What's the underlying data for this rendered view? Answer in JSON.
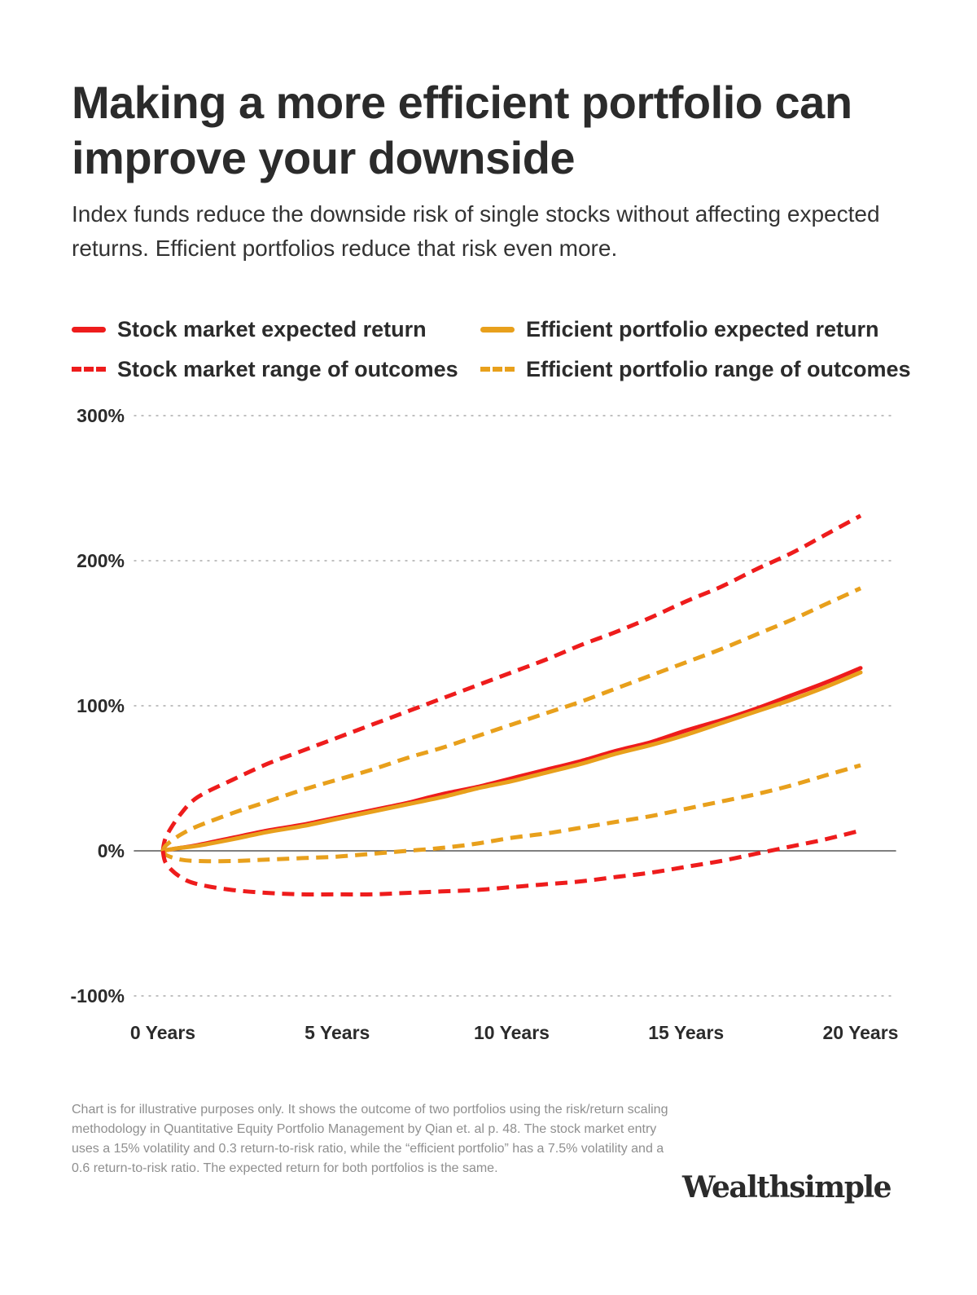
{
  "title": "Making a more efficient portfolio can improve your downside",
  "subtitle": "Index funds reduce the downside risk of single stocks without affecting expected returns. Efficient portfolios reduce that risk even more.",
  "legend": {
    "stock_expected": "Stock market expected return",
    "efficient_expected": "Efficient portfolio expected return",
    "stock_range": "Stock market range of outcomes",
    "efficient_range": "Efficient portfolio range of outcomes"
  },
  "colors": {
    "stock": "#ee1c1c",
    "efficient": "#e8a01c",
    "grid": "#9a9a9a",
    "axis": "#555555",
    "text": "#2b2b2b"
  },
  "footnote": "Chart is for illustrative purposes only. It shows the outcome of two portfolios using the risk/return scaling methodology in Quantitative Equity Portfolio Management by Qian et. al p. 48. The stock market entry uses a 15% volatility and 0.3 return-to-risk ratio, while the “efficient portfolio” has a 7.5% volatility and a 0.6 return-to-risk ratio. The expected return for both portfolios is the same.",
  "brand": "Wealthsimple",
  "chart_data": {
    "type": "line",
    "x": [
      0,
      0.1,
      0.5,
      1,
      2,
      3,
      4,
      5,
      6,
      7,
      8,
      9,
      10,
      11,
      12,
      13,
      14,
      15,
      16,
      17,
      18,
      19,
      20
    ],
    "x_tick_values": [
      0,
      5,
      10,
      15,
      20
    ],
    "x_tick_labels": [
      "0 Years",
      "5 Years",
      "10 Years",
      "15 Years",
      "20 Years"
    ],
    "ylim": [
      -100,
      300
    ],
    "y_tick_values": [
      -100,
      0,
      100,
      200,
      300
    ],
    "y_tick_labels": [
      "-100%",
      "0%",
      "100%",
      "200%",
      "300%"
    ],
    "grid": "horizontal dotted",
    "legend_position": "top",
    "series": [
      {
        "key": "stock_upper",
        "name": "Stock market range of outcomes",
        "style": "dashed",
        "color": "stock",
        "values": [
          0,
          10,
          25,
          37,
          49,
          60,
          69,
          78,
          87,
          96,
          105,
          114,
          123,
          132,
          142,
          151,
          161,
          172,
          182,
          194,
          205,
          218,
          231
        ]
      },
      {
        "key": "efficient_upper",
        "name": "Efficient portfolio range of outcomes",
        "style": "dashed",
        "color": "efficient",
        "values": [
          0,
          4,
          11,
          17,
          26,
          34,
          42,
          49,
          56,
          64,
          71,
          79,
          87,
          95,
          103,
          112,
          121,
          130,
          139,
          149,
          159,
          170,
          181
        ]
      },
      {
        "key": "stock_mean",
        "name": "Stock market expected return",
        "style": "solid",
        "color": "stock",
        "values": [
          0,
          0.5,
          2,
          4,
          9,
          14,
          18,
          23,
          28,
          33,
          39,
          44,
          50,
          56,
          62,
          69,
          75,
          83,
          90,
          98,
          107,
          116,
          126
        ]
      },
      {
        "key": "efficient_mean",
        "name": "Efficient portfolio expected return",
        "style": "solid",
        "color": "efficient",
        "values": [
          0,
          0.5,
          2,
          3.5,
          8,
          13,
          17,
          22,
          27,
          32,
          37,
          43,
          48,
          54,
          60,
          67,
          73,
          80,
          88,
          96,
          104,
          113,
          123
        ]
      },
      {
        "key": "efficient_lower",
        "name": "Efficient portfolio range of outcomes",
        "style": "dashed",
        "color": "efficient",
        "values": [
          0,
          -3,
          -6,
          -7,
          -7,
          -6,
          -5,
          -4,
          -2,
          0,
          2,
          5,
          9,
          12,
          16,
          20,
          24,
          29,
          34,
          39,
          45,
          52,
          59
        ]
      },
      {
        "key": "stock_lower",
        "name": "Stock market range of outcomes",
        "style": "dashed",
        "color": "stock",
        "values": [
          0,
          -9,
          -18,
          -23,
          -27,
          -29,
          -30,
          -30,
          -30,
          -29,
          -28,
          -27,
          -25,
          -23,
          -21,
          -18,
          -15,
          -11,
          -7,
          -2,
          3,
          8,
          14
        ]
      }
    ]
  }
}
